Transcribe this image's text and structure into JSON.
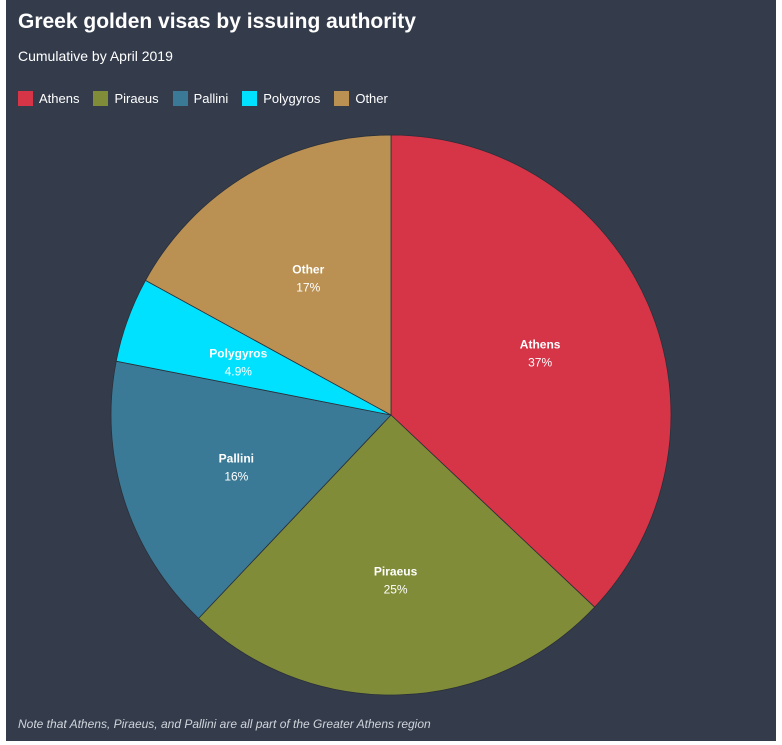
{
  "title": "Greek golden visas by issuing authority",
  "subtitle": "Cumulative by April 2019",
  "note": "Note that Athens, Piraeus, and Pallini are all part of the Greater Athens region",
  "chart_data": {
    "type": "pie",
    "title": "Greek golden visas by issuing authority",
    "subtitle": "Cumulative by April 2019",
    "legend_position": "top-left",
    "start_angle": "12 o'clock, clockwise",
    "slices": [
      {
        "label": "Athens",
        "value": 37,
        "display": "37%",
        "color": "#d63447"
      },
      {
        "label": "Piraeus",
        "value": 25,
        "display": "25%",
        "color": "#808c38"
      },
      {
        "label": "Pallini",
        "value": 16,
        "display": "16%",
        "color": "#3b7a96"
      },
      {
        "label": "Polygyros",
        "value": 4.9,
        "display": "4.9%",
        "color": "#00e1ff"
      },
      {
        "label": "Other",
        "value": 17,
        "display": "17%",
        "color": "#ba9152"
      }
    ]
  }
}
